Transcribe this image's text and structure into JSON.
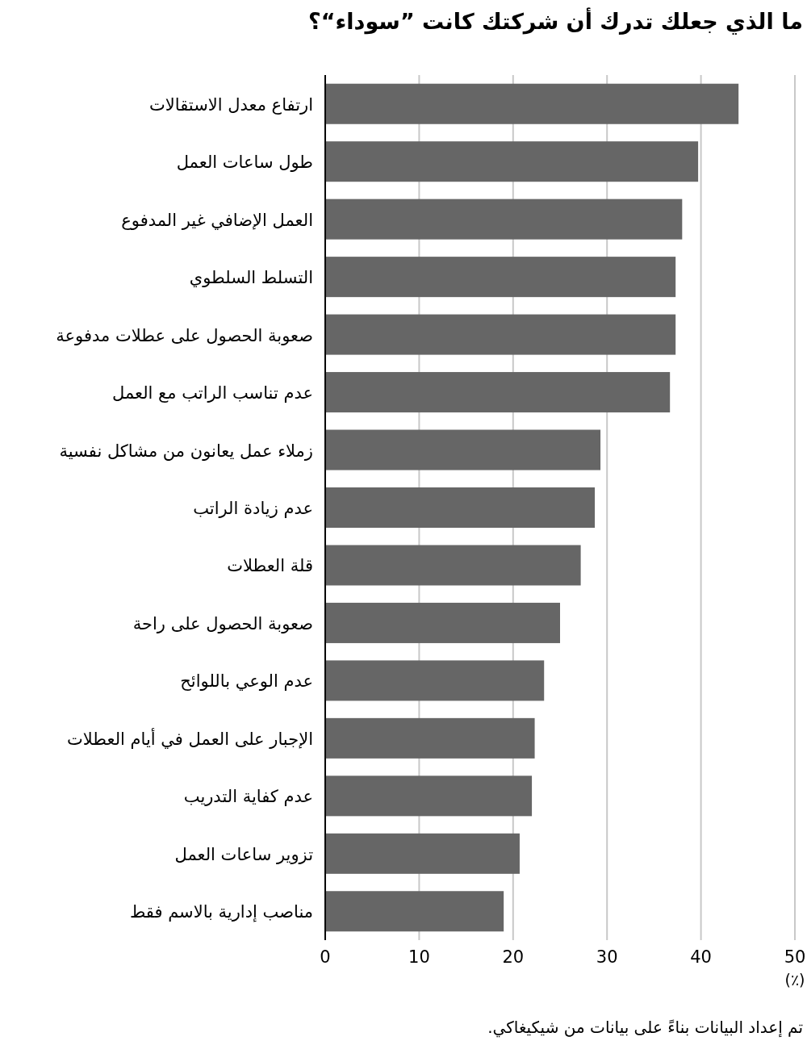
{
  "chart_data": {
    "type": "bar",
    "orientation": "horizontal",
    "title": "ما الذي جعلك تدرك أن شركتك كانت ”سوداء“؟",
    "xlabel": "(٪)",
    "categories": [
      "ارتفاع معدل الاستقالات",
      "طول ساعات العمل",
      "العمل الإضافي غير المدفوع",
      "التسلط السلطوي",
      "صعوبة الحصول على عطلات مدفوعة",
      "عدم تناسب الراتب مع العمل",
      "زملاء عمل يعانون من مشاكل نفسية",
      "عدم زيادة الراتب",
      "قلة العطلات",
      "صعوبة الحصول على راحة",
      "عدم الوعي باللوائح",
      "الإجبار على العمل في أيام العطلات",
      "عدم كفاية التدريب",
      "تزوير ساعات العمل",
      "مناصب إدارية بالاسم فقط"
    ],
    "values": [
      44.0,
      39.7,
      38.0,
      37.3,
      37.3,
      36.7,
      29.3,
      28.7,
      27.2,
      25.0,
      23.3,
      22.3,
      22.0,
      20.7,
      19.0
    ],
    "color": "#666666",
    "xlim": [
      0,
      50
    ],
    "xticks": [
      0,
      10,
      20,
      30,
      40,
      50
    ],
    "grid": "x",
    "annotations": [
      "تم إعداد البيانات بناءً على بيانات من شيكيغاكي."
    ]
  }
}
